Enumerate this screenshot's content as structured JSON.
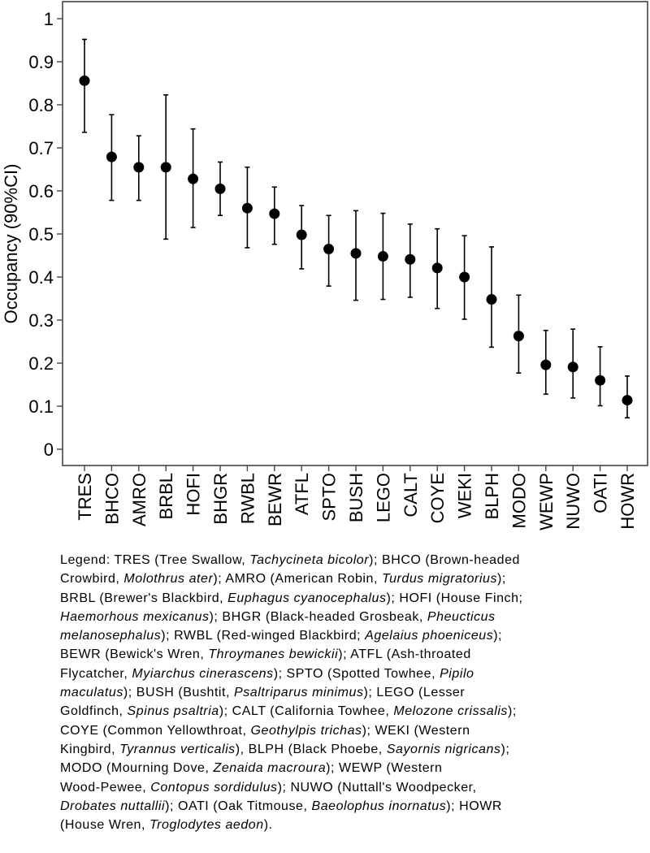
{
  "chart_data": {
    "type": "scatter",
    "subtype": "point-with-error-bars",
    "title": "",
    "xlabel": "",
    "ylabel": "Occupancy (90%CI)",
    "ylim": [
      0,
      1
    ],
    "yticks": [
      "0",
      "0.1",
      "0.2",
      "0.3",
      "0.4",
      "0.5",
      "0.6",
      "0.7",
      "0.8",
      "0.9",
      "1"
    ],
    "grid": false,
    "categories": [
      "TRES",
      "BHCO",
      "AMRO",
      "BRBL",
      "HOFI",
      "BHGR",
      "RWBL",
      "BEWR",
      "ATFL",
      "SPTO",
      "BUSH",
      "LEGO",
      "CALT",
      "COYE",
      "WEKI",
      "BLPH",
      "MODO",
      "WEWP",
      "NUWO",
      "OATI",
      "HOWR"
    ],
    "values": [
      0.856,
      0.679,
      0.655,
      0.655,
      0.628,
      0.605,
      0.56,
      0.547,
      0.498,
      0.465,
      0.455,
      0.448,
      0.441,
      0.421,
      0.4,
      0.348,
      0.263,
      0.196,
      0.191,
      0.16,
      0.114
    ],
    "ci_lower": [
      0.736,
      0.578,
      0.578,
      0.488,
      0.515,
      0.543,
      0.468,
      0.476,
      0.419,
      0.379,
      0.346,
      0.348,
      0.353,
      0.327,
      0.302,
      0.237,
      0.177,
      0.128,
      0.119,
      0.101,
      0.073
    ],
    "ci_upper": [
      0.952,
      0.777,
      0.728,
      0.823,
      0.744,
      0.667,
      0.655,
      0.609,
      0.566,
      0.543,
      0.554,
      0.548,
      0.523,
      0.512,
      0.496,
      0.47,
      0.358,
      0.276,
      0.279,
      0.238,
      0.17
    ]
  },
  "legend": {
    "lines": [
      [
        [
          "Legend: TRES (Tree Swallow, ",
          false
        ],
        [
          "Tachycineta bicolor",
          true
        ],
        [
          "); BHCO (Brown-headed",
          false
        ]
      ],
      [
        [
          "Crowbird, ",
          false
        ],
        [
          "Molothrus ater",
          true
        ],
        [
          "); AMRO (American Robin, ",
          false
        ],
        [
          "Turdus migratorius",
          true
        ],
        [
          ");",
          false
        ]
      ],
      [
        [
          "BRBL (Brewer's Blackbird, ",
          false
        ],
        [
          "Euphagus cyanocephalus",
          true
        ],
        [
          "); HOFI (House Finch;",
          false
        ]
      ],
      [
        [
          "Haemorhous mexicanus",
          true
        ],
        [
          "); BHGR (Black-headed Grosbeak, ",
          false
        ],
        [
          "Pheucticus",
          true
        ]
      ],
      [
        [
          "melanosephalus",
          true
        ],
        [
          "); RWBL (Red-winged Blackbird; ",
          false
        ],
        [
          "Agelaius phoeniceus",
          true
        ],
        [
          ");",
          false
        ]
      ],
      [
        [
          "BEWR (Bewick's Wren, ",
          false
        ],
        [
          "Throymanes bewickii",
          true
        ],
        [
          "); ATFL (Ash-throated",
          false
        ]
      ],
      [
        [
          "Flycatcher, ",
          false
        ],
        [
          "Myiarchus cinerascens",
          true
        ],
        [
          "); SPTO (Spotted Towhee, ",
          false
        ],
        [
          "Pipilo",
          true
        ]
      ],
      [
        [
          "maculatus",
          true
        ],
        [
          "); BUSH (Bushtit, ",
          false
        ],
        [
          "Psaltriparus minimus",
          true
        ],
        [
          "); LEGO (Lesser",
          false
        ]
      ],
      [
        [
          "Goldfinch, ",
          false
        ],
        [
          "Spinus psaltria",
          true
        ],
        [
          "); CALT (California Towhee, ",
          false
        ],
        [
          "Melozone crissalis",
          true
        ],
        [
          ");",
          false
        ]
      ],
      [
        [
          "COYE (Common Yellowthroat, ",
          false
        ],
        [
          "Geothylpis trichas",
          true
        ],
        [
          "); WEKI (Western",
          false
        ]
      ],
      [
        [
          "Kingbird, ",
          false
        ],
        [
          "Tyrannus verticalis",
          true
        ],
        [
          "), BLPH (Black Phoebe, ",
          false
        ],
        [
          "Sayornis nigricans",
          true
        ],
        [
          ");",
          false
        ]
      ],
      [
        [
          "MODO (Mourning Dove, ",
          false
        ],
        [
          "Zenaida macroura",
          true
        ],
        [
          "); WEWP (Western",
          false
        ]
      ],
      [
        [
          "Wood-Pewee, ",
          false
        ],
        [
          "Contopus sordidulus",
          true
        ],
        [
          "); NUWO (Nuttall's Woodpecker,",
          false
        ]
      ],
      [
        [
          "Drobates nuttallii",
          true
        ],
        [
          "); OATI (Oak Titmouse, ",
          false
        ],
        [
          "Baeolophus inornatus",
          true
        ],
        [
          "); HOWR",
          false
        ]
      ],
      [
        [
          "(House Wren, ",
          false
        ],
        [
          "Troglodytes aedon",
          true
        ],
        [
          ").",
          false
        ]
      ]
    ]
  }
}
